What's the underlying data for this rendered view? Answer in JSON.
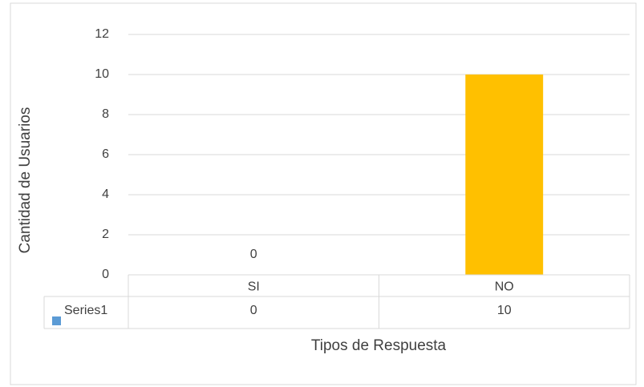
{
  "chart_data": {
    "type": "bar",
    "x_label": "Tipos de Respuesta",
    "y_label": "Cantidad de Usuarios",
    "categories": [
      "SI",
      "NO"
    ],
    "series": [
      {
        "name": "Series1",
        "color": "#5b9bd5",
        "point_colors": [
          "#5b9bd5",
          "#ffc000"
        ],
        "values": [
          0,
          10
        ],
        "value_labels": [
          "0",
          null
        ]
      }
    ],
    "ylim": [
      0,
      12
    ],
    "yticks": [
      0,
      2,
      4,
      6,
      8,
      10,
      12
    ],
    "grid": true,
    "data_table": true
  }
}
